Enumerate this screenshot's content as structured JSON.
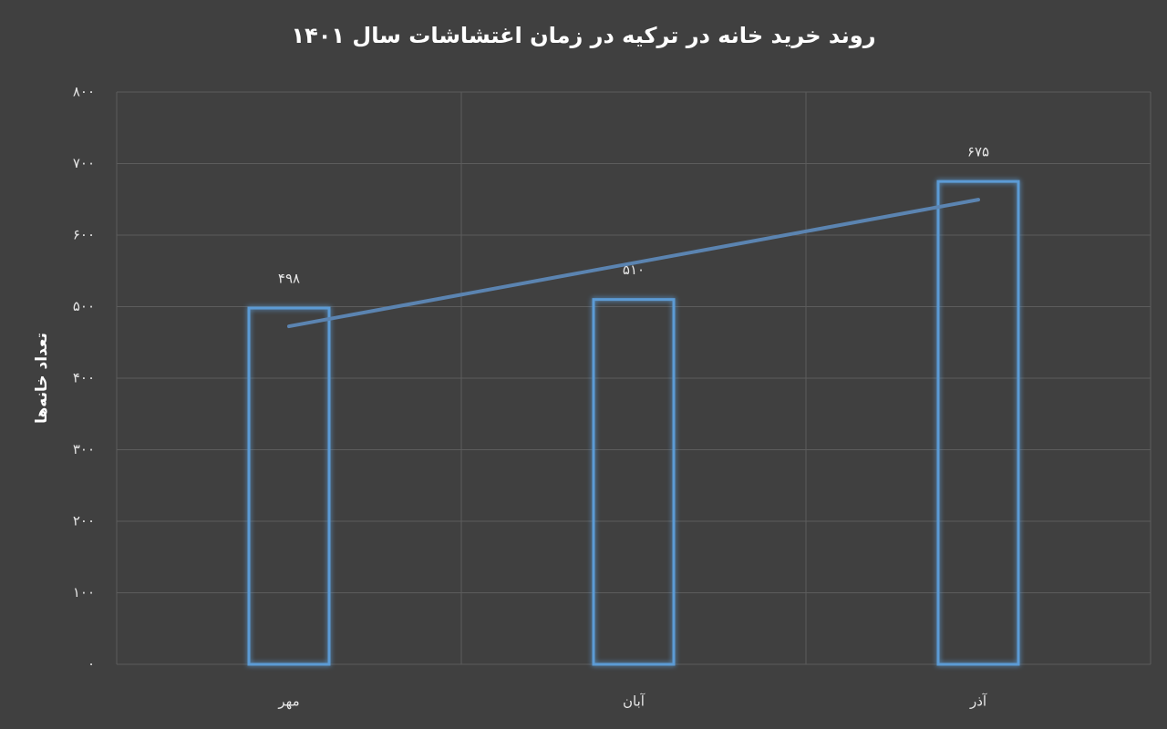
{
  "chart_data": {
    "type": "bar",
    "title": "روند خرید خانه در ترکیه در زمان اغتشاشات سال ۱۴۰۱",
    "y_label": "تعداد خانه‌ها",
    "categories": [
      "مهر",
      "آبان",
      "آذر"
    ],
    "values": [
      498,
      510,
      675
    ],
    "value_labels": [
      "۴۹۸",
      "۵۱۰",
      "۶۷۵"
    ],
    "color": "#5b9bd5",
    "trendline": "linear",
    "trendline_color": "#5b84b1",
    "ylim": [
      0,
      800
    ],
    "yticks": [
      {
        "value": 0,
        "label": "۰"
      },
      {
        "value": 100,
        "label": "۱۰۰"
      },
      {
        "value": 200,
        "label": "۲۰۰"
      },
      {
        "value": 300,
        "label": "۳۰۰"
      },
      {
        "value": 400,
        "label": "۴۰۰"
      },
      {
        "value": 500,
        "label": "۵۰۰"
      },
      {
        "value": 600,
        "label": "۶۰۰"
      },
      {
        "value": 700,
        "label": "۷۰۰"
      },
      {
        "value": 800,
        "label": "۸۰۰"
      }
    ],
    "grid": true
  }
}
